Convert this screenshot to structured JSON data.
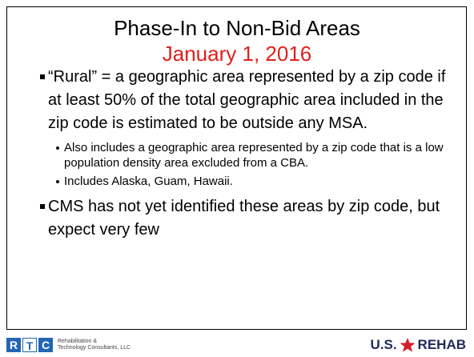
{
  "title": "Phase-In to Non-Bid Areas",
  "subtitle": "January 1, 2016",
  "bullets": [
    {
      "text": "“Rural” = a geographic area represented by a zip code if at least 50% of the total geographic area included in the zip code is estimated to be outside any MSA.",
      "sub": [
        "Also includes a geographic area represented by a zip code that is a low population density area excluded from a CBA.",
        "Includes Alaska, Guam, Hawaii."
      ]
    },
    {
      "text": "CMS has not yet identified these areas by zip code, but expect very few"
    }
  ],
  "footer": {
    "left_logo": {
      "letters": [
        "R",
        "T",
        "C"
      ],
      "text": [
        "Rehabilitation &",
        "Technology Consultants, LLC"
      ]
    },
    "right_logo": {
      "left": "U.S.",
      "right": "REHAB"
    }
  }
}
